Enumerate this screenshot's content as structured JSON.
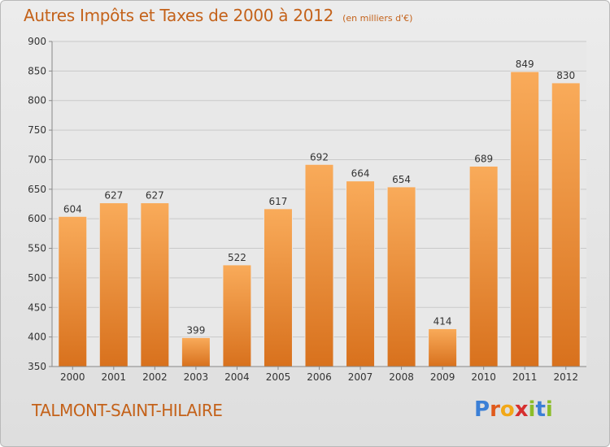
{
  "title": "Autres Impôts et Taxes de 2000 à 2012",
  "subtitle": "(en milliers d'€)",
  "commune": "TALMONT-SAINT-HILAIRE",
  "logo": {
    "letters": [
      "P",
      "r",
      "o",
      "x",
      "i",
      "t",
      "i"
    ],
    "colors": [
      "#3b7fd6",
      "#e05a1c",
      "#f2a818",
      "#d62f2f",
      "#8bbd2a",
      "#3b7fd6",
      "#8bbd2a"
    ]
  },
  "colors": {
    "accent": "#c4621a",
    "bar_light": "#f7a552",
    "bar_dark": "#d9731f"
  },
  "chart_data": {
    "type": "bar",
    "categories": [
      "2000",
      "2001",
      "2002",
      "2003",
      "2004",
      "2005",
      "2006",
      "2007",
      "2008",
      "2009",
      "2010",
      "2011",
      "2012"
    ],
    "values": [
      604,
      627,
      627,
      399,
      522,
      617,
      692,
      664,
      654,
      414,
      689,
      849,
      830
    ],
    "ylim": [
      350,
      900
    ],
    "yticks": [
      350,
      400,
      450,
      500,
      550,
      600,
      650,
      700,
      750,
      800,
      850,
      900
    ],
    "grid": true,
    "legend": "none"
  }
}
